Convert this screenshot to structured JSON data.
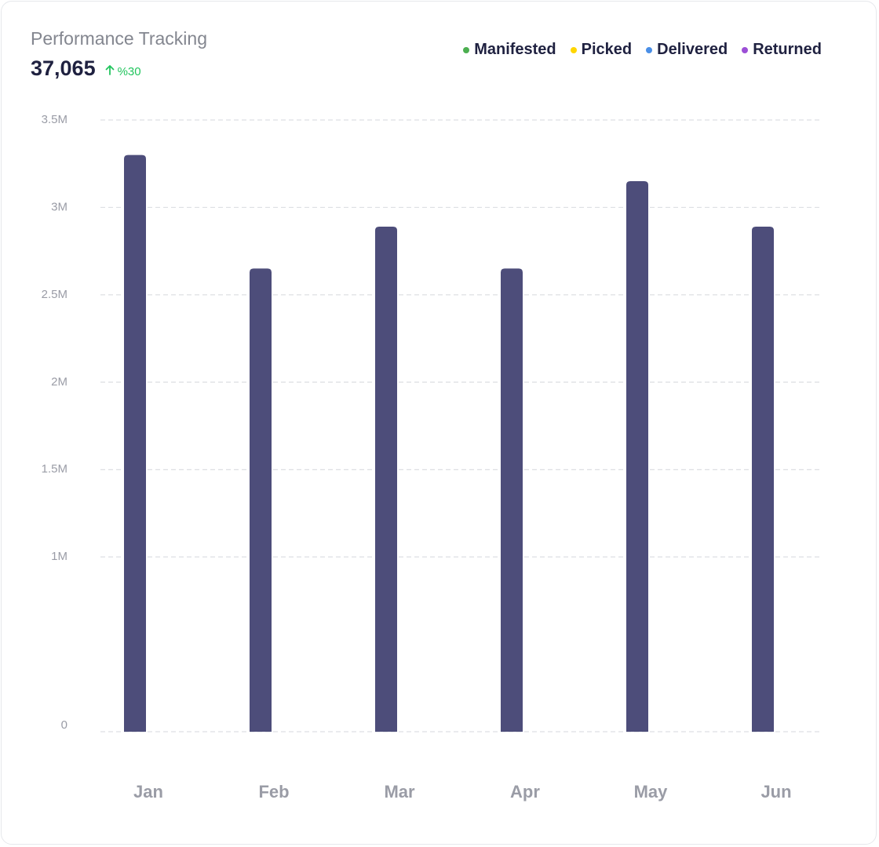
{
  "card": {
    "title": "Performance Tracking",
    "value": "37,065",
    "change": "%30",
    "change_icon": "arrow-up-icon"
  },
  "legend": [
    {
      "label": "Manifested",
      "color": "#4caf50"
    },
    {
      "label": "Picked",
      "color": "#ffd600"
    },
    {
      "label": "Delivered",
      "color": "#4a8fe7"
    },
    {
      "label": "Returned",
      "color": "#9c4fd6"
    }
  ],
  "colors": {
    "bar": "#4d4d7a",
    "grid": "#dddfe3",
    "tick_text": "#9a9ca6",
    "category_text": "#9a9ca6",
    "accent_green": "#22c55e"
  },
  "chart_data": {
    "type": "bar",
    "categories": [
      "Jan",
      "Feb",
      "Mar",
      "Apr",
      "May",
      "Jun"
    ],
    "values": [
      3300000,
      2650000,
      2890000,
      2650000,
      3150000,
      2890000
    ],
    "ylim": [
      0,
      3500000
    ],
    "yticks": [
      0,
      1000000,
      1500000,
      2000000,
      2500000,
      3000000,
      3500000
    ],
    "ytick_labels": [
      "0",
      "1M",
      "1.5M",
      "2M",
      "2.5M",
      "3M",
      "3.5M"
    ],
    "grid": true,
    "legend_position": "top-right"
  }
}
